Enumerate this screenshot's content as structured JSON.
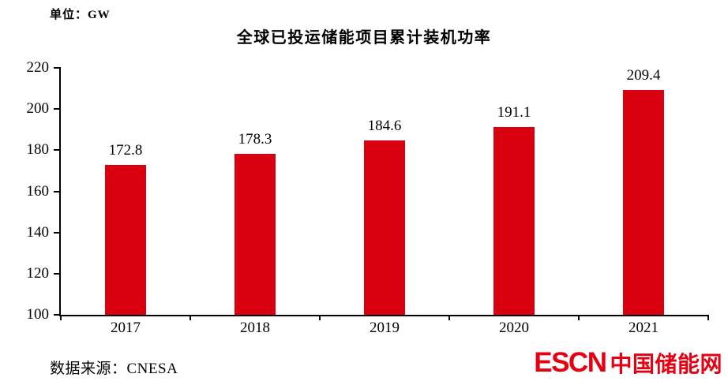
{
  "chart_data": {
    "type": "bar",
    "title": "全球已投运储能项目累计装机功率",
    "unit": "GW",
    "unit_label": "单位：GW",
    "categories": [
      "2017",
      "2018",
      "2019",
      "2020",
      "2021"
    ],
    "values": [
      172.8,
      178.3,
      184.6,
      191.1,
      209.4
    ],
    "value_labels": [
      "172.8",
      "178.3",
      "184.6",
      "191.1",
      "209.4"
    ],
    "xlabel": "",
    "ylabel": "",
    "ylim": [
      100,
      220
    ],
    "yticks": [
      100,
      120,
      140,
      160,
      180,
      200,
      220
    ],
    "grid": false,
    "legend": "none",
    "bar_color": "#d9000f",
    "axis_color": "#000000"
  },
  "footer": {
    "source_label": "数据来源：CNESA",
    "logo": {
      "escn": "ESCN",
      "cn": "中国储能网",
      "color": "#e60012"
    }
  }
}
